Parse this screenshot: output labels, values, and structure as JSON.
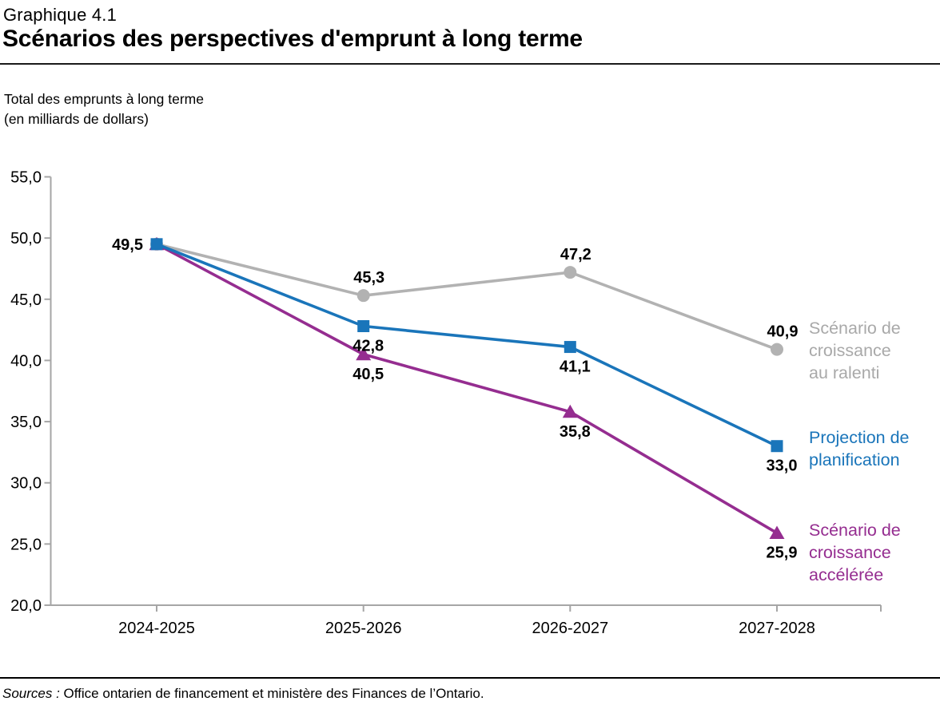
{
  "header": {
    "eyebrow": "Graphique 4.1",
    "title": "Scénarios des perspectives d'emprunt à long terme"
  },
  "subtitle": {
    "line1": "Total des emprunts à long terme",
    "line2": "(en milliards de dollars)"
  },
  "legend": {
    "slow": "Scénario de\ncroissance\nau ralenti",
    "plan": "Projection de\nplanification",
    "fast": "Scénario de\ncroissance\naccélérée"
  },
  "footer": {
    "sources_label": "Sources :",
    "sources_text": "Office ontarien de financement et ministère des Finances de l’Ontario."
  },
  "colors": {
    "slow": "#b2b2b2",
    "slow_text": "#a9a9a9",
    "plan": "#1a75ba",
    "fast": "#952d90",
    "axis": "#a6a6a6",
    "label": "#000000"
  },
  "chart_data": {
    "type": "line",
    "title": "Scénarios des perspectives d'emprunt à long terme",
    "ylabel": "Total des emprunts à long terme (en milliards de dollars)",
    "xlabel": "",
    "categories": [
      "2024-2025",
      "2025-2026",
      "2026-2027",
      "2027-2028"
    ],
    "series": [
      {
        "name": "Scénario de croissance au ralenti",
        "color": "#b2b2b2",
        "marker": "circle",
        "values": [
          49.5,
          45.3,
          47.2,
          40.9
        ],
        "label_positions": [
          "none",
          "above",
          "above",
          "above"
        ]
      },
      {
        "name": "Scénario de croissance accélérée",
        "color": "#952d90",
        "marker": "triangle",
        "values": [
          49.5,
          40.5,
          35.8,
          25.9
        ],
        "label_positions": [
          "none",
          "below",
          "below",
          "below"
        ]
      },
      {
        "name": "Projection de planification",
        "color": "#1a75ba",
        "marker": "square",
        "values": [
          49.5,
          42.8,
          41.1,
          33.0
        ],
        "label_positions": [
          "left",
          "below",
          "below",
          "below"
        ]
      }
    ],
    "ylim": [
      20,
      55
    ],
    "ytick_step": 5,
    "decimal_separator": ",",
    "grid": false,
    "legend_position": "right"
  }
}
